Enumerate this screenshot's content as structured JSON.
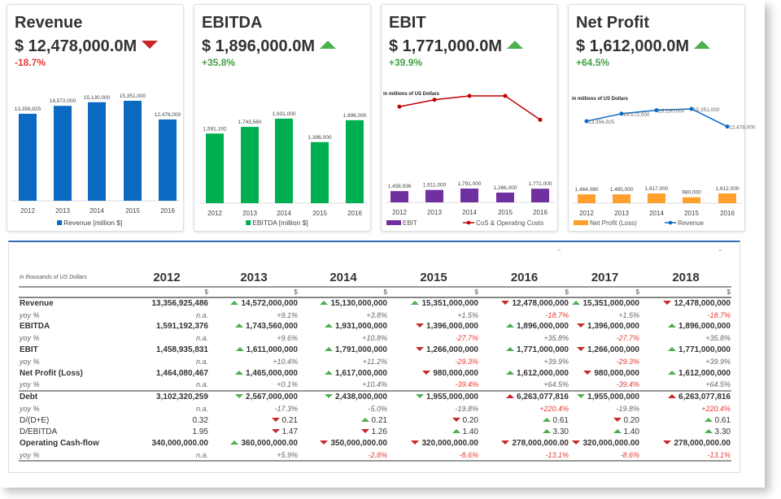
{
  "colors": {
    "up": "#4caf50",
    "down": "#c62828",
    "neg_text": "#e53935",
    "pos_text": "#43a047",
    "revenue": "#0a6ac2",
    "ebitda": "#00b050",
    "ebit": "#7030a0",
    "cos": "#c00000",
    "net_profit": "#ff9f2e",
    "accent": "#2f6db5"
  },
  "cards": [
    {
      "title": "Revenue",
      "value": "$ 12,478,000.0M",
      "trend": "down",
      "change": "-18.7%"
    },
    {
      "title": "EBITDA",
      "value": "$ 1,896,000.0M",
      "trend": "up",
      "change": "+35.8%"
    },
    {
      "title": "EBIT",
      "value": "$ 1,771,000.0M",
      "trend": "up",
      "change": "+39.9%"
    },
    {
      "title": "Net Profit",
      "value": "$ 1,612,000.0M",
      "trend": "up",
      "change": "+64.5%"
    }
  ],
  "chart_data": [
    {
      "type": "bar",
      "categories": [
        "2012",
        "2013",
        "2014",
        "2015",
        "2016"
      ],
      "series": [
        {
          "name": "Revenue [million $]",
          "values": [
            13356925,
            14572000,
            15130000,
            15351000,
            12478000
          ],
          "labels": [
            "13,356,925",
            "14,572,000",
            "15,130,000",
            "15,351,000",
            "12,478,000"
          ]
        }
      ],
      "legend": "bottom"
    },
    {
      "type": "bar",
      "categories": [
        "2012",
        "2013",
        "2014",
        "2015",
        "2016"
      ],
      "series": [
        {
          "name": "EBITDA [million $]",
          "values": [
            1591192,
            1743560,
            1931000,
            1396000,
            1896000
          ],
          "labels": [
            "1,591,192",
            "1,743,560",
            "1,931,000",
            "1,396,000",
            "1,896,000"
          ]
        }
      ],
      "legend": "bottom"
    },
    {
      "type": "bar+line",
      "subtitle": "in millions of US Dollars",
      "categories": [
        "2012",
        "2013",
        "2014",
        "2015",
        "2016"
      ],
      "series": [
        {
          "name": "EBIT",
          "kind": "bar",
          "values": [
            1458936,
            1611000,
            1791000,
            1266000,
            1771000
          ],
          "labels": [
            "1,458,936",
            "1,611,000",
            "1,791,000",
            "1,266,000",
            "1,771,000"
          ]
        },
        {
          "name": "CoS & Operating Costs",
          "kind": "line",
          "values": [
            12400000,
            13300000,
            13800000,
            13800000,
            10700000
          ]
        }
      ],
      "legend": "bottom"
    },
    {
      "type": "bar+line",
      "subtitle": "in millions of US Dollars",
      "categories": [
        "2012",
        "2013",
        "2014",
        "2015",
        "2016"
      ],
      "series": [
        {
          "name": "Net Profit (Loss)",
          "kind": "bar",
          "values": [
            1464080,
            1465000,
            1617000,
            980000,
            1612000
          ],
          "labels": [
            "1,464,080",
            "1,465,000",
            "1,617,000",
            "980,000",
            "1,612,000"
          ]
        },
        {
          "name": "Revenue",
          "kind": "line",
          "values": [
            13356925,
            14572000,
            15130000,
            15351000,
            12478000
          ],
          "labels": [
            "13,356,925",
            "14,572,000",
            "15,130,000",
            "15,351,000",
            "12,478,000"
          ]
        }
      ],
      "legend": "bottom"
    }
  ],
  "table": {
    "unit_note": "in thousands of US Dollars",
    "years": [
      "2012",
      "2013",
      "2014",
      "2015",
      "2016",
      "2017",
      "2018"
    ],
    "currency": "$",
    "rows": [
      {
        "label": "Revenue",
        "type": "main",
        "cells": [
          {
            "v": "13,356,925,486"
          },
          {
            "v": "14,572,000,000",
            "a": "up",
            "c": "up"
          },
          {
            "v": "15,130,000,000",
            "a": "up",
            "c": "up"
          },
          {
            "v": "15,351,000,000",
            "a": "up",
            "c": "up"
          },
          {
            "v": "12,478,000,000",
            "a": "down",
            "c": "down"
          },
          {
            "v": "15,351,000,000",
            "a": "up",
            "c": "up"
          },
          {
            "v": "12,478,000,000",
            "a": "down",
            "c": "down"
          }
        ]
      },
      {
        "label": "yoy %",
        "type": "yoy",
        "cells": [
          {
            "v": "n.a."
          },
          {
            "v": "+9.1%"
          },
          {
            "v": "+3.8%"
          },
          {
            "v": "+1.5%"
          },
          {
            "v": "-18.7%",
            "neg": true
          },
          {
            "v": "+1.5%"
          },
          {
            "v": "-18.7%",
            "neg": true
          }
        ]
      },
      {
        "label": "EBITDA",
        "type": "main",
        "cells": [
          {
            "v": "1,591,192,376"
          },
          {
            "v": "1,743,560,000",
            "a": "up",
            "c": "up"
          },
          {
            "v": "1,931,000,000",
            "a": "up",
            "c": "up"
          },
          {
            "v": "1,396,000,000",
            "a": "down",
            "c": "down"
          },
          {
            "v": "1,896,000,000",
            "a": "up",
            "c": "up"
          },
          {
            "v": "1,396,000,000",
            "a": "down",
            "c": "down"
          },
          {
            "v": "1,896,000,000",
            "a": "up",
            "c": "up"
          }
        ]
      },
      {
        "label": "yoy %",
        "type": "yoy",
        "cells": [
          {
            "v": "n.a."
          },
          {
            "v": "+9.6%"
          },
          {
            "v": "+10.8%"
          },
          {
            "v": "-27.7%",
            "neg": true
          },
          {
            "v": "+35.8%"
          },
          {
            "v": "-27.7%",
            "neg": true
          },
          {
            "v": "+35.8%"
          }
        ]
      },
      {
        "label": "EBIT",
        "type": "main",
        "cells": [
          {
            "v": "1,458,935,831"
          },
          {
            "v": "1,611,000,000",
            "a": "up",
            "c": "up"
          },
          {
            "v": "1,791,000,000",
            "a": "up",
            "c": "up"
          },
          {
            "v": "1,266,000,000",
            "a": "down",
            "c": "down"
          },
          {
            "v": "1,771,000,000",
            "a": "up",
            "c": "up"
          },
          {
            "v": "1,266,000,000",
            "a": "down",
            "c": "down"
          },
          {
            "v": "1,771,000,000",
            "a": "up",
            "c": "up"
          }
        ]
      },
      {
        "label": "yoy %",
        "type": "yoy",
        "cells": [
          {
            "v": "n.a."
          },
          {
            "v": "+10.4%"
          },
          {
            "v": "+11.2%"
          },
          {
            "v": "-29.3%",
            "neg": true
          },
          {
            "v": "+39.9%"
          },
          {
            "v": "-29.3%",
            "neg": true
          },
          {
            "v": "+39.9%"
          }
        ]
      },
      {
        "label": "Net Profit (Loss)",
        "type": "main",
        "cells": [
          {
            "v": "1,464,080,467"
          },
          {
            "v": "1,465,000,000",
            "a": "up",
            "c": "up"
          },
          {
            "v": "1,617,000,000",
            "a": "up",
            "c": "up"
          },
          {
            "v": "980,000,000",
            "a": "down",
            "c": "down"
          },
          {
            "v": "1,612,000,000",
            "a": "up",
            "c": "up"
          },
          {
            "v": "980,000,000",
            "a": "down",
            "c": "down"
          },
          {
            "v": "1,612,000,000",
            "a": "up",
            "c": "up"
          }
        ]
      },
      {
        "label": "yoy %",
        "type": "yoy",
        "cells": [
          {
            "v": "n.a."
          },
          {
            "v": "+0.1%"
          },
          {
            "v": "+10.4%"
          },
          {
            "v": "-39.4%",
            "neg": true
          },
          {
            "v": "+64.5%"
          },
          {
            "v": "-39.4%",
            "neg": true
          },
          {
            "v": "+64.5%"
          }
        ]
      },
      {
        "label": "Debt",
        "type": "main sep",
        "cells": [
          {
            "v": "3,102,320,259"
          },
          {
            "v": "2,567,000,000",
            "a": "down",
            "c": "up"
          },
          {
            "v": "2,438,000,000",
            "a": "down",
            "c": "up"
          },
          {
            "v": "1,955,000,000",
            "a": "down",
            "c": "up"
          },
          {
            "v": "6,263,077,816",
            "a": "up",
            "c": "down"
          },
          {
            "v": "1,955,000,000",
            "a": "down",
            "c": "up"
          },
          {
            "v": "6,263,077,816",
            "a": "up",
            "c": "down"
          }
        ]
      },
      {
        "label": "yoy %",
        "type": "yoy",
        "cells": [
          {
            "v": "n.a."
          },
          {
            "v": "-17.3%"
          },
          {
            "v": "-5.0%"
          },
          {
            "v": "-19.8%"
          },
          {
            "v": "+220.4%",
            "neg": true
          },
          {
            "v": "-19.8%"
          },
          {
            "v": "+220.4%",
            "neg": true
          }
        ]
      },
      {
        "label": "D/(D+E)",
        "type": "plain",
        "cells": [
          {
            "v": "0.32"
          },
          {
            "v": "0.21",
            "a": "down",
            "c": "down"
          },
          {
            "v": "0.21",
            "a": "up",
            "c": "up"
          },
          {
            "v": "0.20",
            "a": "down",
            "c": "down"
          },
          {
            "v": "0.61",
            "a": "up",
            "c": "up"
          },
          {
            "v": "0.20",
            "a": "down",
            "c": "down"
          },
          {
            "v": "0.61",
            "a": "up",
            "c": "up"
          }
        ]
      },
      {
        "label": "D/EBITDA",
        "type": "plain",
        "cells": [
          {
            "v": "1.95"
          },
          {
            "v": "1.47",
            "a": "down",
            "c": "down"
          },
          {
            "v": "1.26",
            "a": "down",
            "c": "down"
          },
          {
            "v": "1.40",
            "a": "up",
            "c": "up"
          },
          {
            "v": "3.30",
            "a": "up",
            "c": "up"
          },
          {
            "v": "1.40",
            "a": "up",
            "c": "up"
          },
          {
            "v": "3.30",
            "a": "up",
            "c": "up"
          }
        ]
      },
      {
        "label": "Operating Cash-flow",
        "type": "main",
        "cells": [
          {
            "v": "340,000,000.00"
          },
          {
            "v": "360,000,000.00",
            "a": "up",
            "c": "up"
          },
          {
            "v": "350,000,000.00",
            "a": "down",
            "c": "down"
          },
          {
            "v": "320,000,000.00",
            "a": "down",
            "c": "down"
          },
          {
            "v": "278,000,000.00",
            "a": "down",
            "c": "down"
          },
          {
            "v": "320,000,000.00",
            "a": "down",
            "c": "down"
          },
          {
            "v": "278,000,000.00",
            "a": "down",
            "c": "down"
          }
        ]
      },
      {
        "label": "yoy %",
        "type": "yoy last",
        "cells": [
          {
            "v": "n.a."
          },
          {
            "v": "+5.9%"
          },
          {
            "v": "-2.8%",
            "neg": true
          },
          {
            "v": "-8.6%",
            "neg": true
          },
          {
            "v": "-13.1%",
            "neg": true
          },
          {
            "v": "-8.6%",
            "neg": true
          },
          {
            "v": "-13.1%",
            "neg": true
          }
        ]
      }
    ]
  }
}
